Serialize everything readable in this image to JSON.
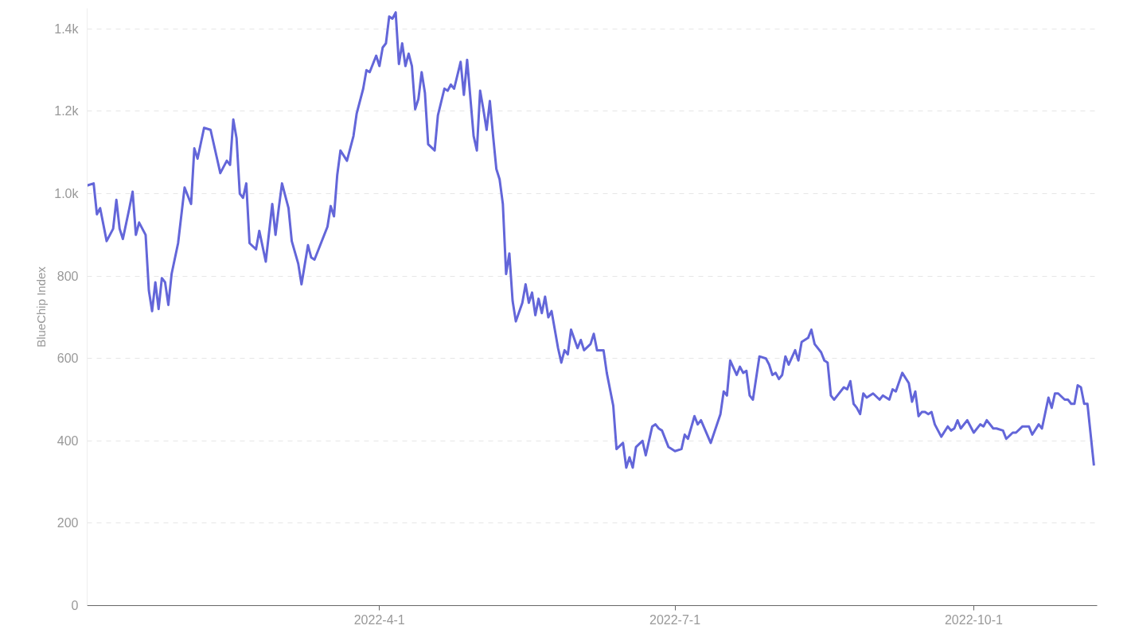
{
  "chart_data": {
    "type": "line",
    "ylabel": "BlueChip Index",
    "grid": "y",
    "xlim": [
      "2022-01-01",
      "2022-11-08"
    ],
    "xticks": [
      {
        "value": "2022-04-01",
        "label": "2022-4-1"
      },
      {
        "value": "2022-07-01",
        "label": "2022-7-1"
      },
      {
        "value": "2022-10-01",
        "label": "2022-10-1"
      }
    ],
    "ylim": [
      0,
      1450
    ],
    "yticks": [
      0,
      200,
      400,
      600,
      800,
      {
        "value": 1000,
        "label": "1.0k"
      },
      {
        "value": 1200,
        "label": "1.2k"
      },
      {
        "value": 1400,
        "label": "1.4k"
      }
    ],
    "x": [
      "2022-01-01",
      "2022-01-03",
      "2022-01-04",
      "2022-01-05",
      "2022-01-07",
      "2022-01-09",
      "2022-01-10",
      "2022-01-11",
      "2022-01-12",
      "2022-01-14",
      "2022-01-15",
      "2022-01-16",
      "2022-01-17",
      "2022-01-19",
      "2022-01-20",
      "2022-01-21",
      "2022-01-22",
      "2022-01-23",
      "2022-01-24",
      "2022-01-25",
      "2022-01-26",
      "2022-01-27",
      "2022-01-29",
      "2022-01-31",
      "2022-02-02",
      "2022-02-03",
      "2022-02-04",
      "2022-02-06",
      "2022-02-08",
      "2022-02-10",
      "2022-02-11",
      "2022-02-13",
      "2022-02-14",
      "2022-02-15",
      "2022-02-16",
      "2022-02-17",
      "2022-02-18",
      "2022-02-19",
      "2022-02-20",
      "2022-02-22",
      "2022-02-23",
      "2022-02-25",
      "2022-02-27",
      "2022-02-28",
      "2022-03-01",
      "2022-03-02",
      "2022-03-04",
      "2022-03-05",
      "2022-03-07",
      "2022-03-08",
      "2022-03-10",
      "2022-03-11",
      "2022-03-12",
      "2022-03-14",
      "2022-03-16",
      "2022-03-17",
      "2022-03-18",
      "2022-03-19",
      "2022-03-20",
      "2022-03-22",
      "2022-03-24",
      "2022-03-25",
      "2022-03-27",
      "2022-03-28",
      "2022-03-29",
      "2022-03-31",
      "2022-04-01",
      "2022-04-02",
      "2022-04-03",
      "2022-04-04",
      "2022-04-05",
      "2022-04-06",
      "2022-04-07",
      "2022-04-08",
      "2022-04-09",
      "2022-04-10",
      "2022-04-11",
      "2022-04-12",
      "2022-04-13",
      "2022-04-14",
      "2022-04-15",
      "2022-04-16",
      "2022-04-18",
      "2022-04-19",
      "2022-04-21",
      "2022-04-22",
      "2022-04-23",
      "2022-04-24",
      "2022-04-26",
      "2022-04-27",
      "2022-04-28",
      "2022-04-30",
      "2022-05-01",
      "2022-05-02",
      "2022-05-03",
      "2022-05-04",
      "2022-05-05",
      "2022-05-06",
      "2022-05-07",
      "2022-05-08",
      "2022-05-09",
      "2022-05-10",
      "2022-05-11",
      "2022-05-12",
      "2022-05-13",
      "2022-05-15",
      "2022-05-16",
      "2022-05-17",
      "2022-05-18",
      "2022-05-19",
      "2022-05-20",
      "2022-05-21",
      "2022-05-22",
      "2022-05-23",
      "2022-05-24",
      "2022-05-26",
      "2022-05-27",
      "2022-05-28",
      "2022-05-29",
      "2022-05-30",
      "2022-06-01",
      "2022-06-02",
      "2022-06-03",
      "2022-06-05",
      "2022-06-06",
      "2022-06-07",
      "2022-06-09",
      "2022-06-10",
      "2022-06-12",
      "2022-06-13",
      "2022-06-15",
      "2022-06-16",
      "2022-06-17",
      "2022-06-18",
      "2022-06-19",
      "2022-06-21",
      "2022-06-22",
      "2022-06-24",
      "2022-06-25",
      "2022-06-26",
      "2022-06-27",
      "2022-06-29",
      "2022-07-01",
      "2022-07-03",
      "2022-07-04",
      "2022-07-05",
      "2022-07-07",
      "2022-07-08",
      "2022-07-09",
      "2022-07-12",
      "2022-07-15",
      "2022-07-16",
      "2022-07-17",
      "2022-07-18",
      "2022-07-20",
      "2022-07-21",
      "2022-07-22",
      "2022-07-23",
      "2022-07-24",
      "2022-07-25",
      "2022-07-27",
      "2022-07-29",
      "2022-07-30",
      "2022-07-31",
      "2022-08-01",
      "2022-08-02",
      "2022-08-03",
      "2022-08-04",
      "2022-08-05",
      "2022-08-07",
      "2022-08-08",
      "2022-08-09",
      "2022-08-11",
      "2022-08-12",
      "2022-08-13",
      "2022-08-15",
      "2022-08-16",
      "2022-08-17",
      "2022-08-18",
      "2022-08-19",
      "2022-08-20",
      "2022-08-22",
      "2022-08-23",
      "2022-08-24",
      "2022-08-25",
      "2022-08-26",
      "2022-08-27",
      "2022-08-28",
      "2022-08-29",
      "2022-08-31",
      "2022-09-02",
      "2022-09-03",
      "2022-09-05",
      "2022-09-06",
      "2022-09-07",
      "2022-09-09",
      "2022-09-11",
      "2022-09-12",
      "2022-09-13",
      "2022-09-14",
      "2022-09-15",
      "2022-09-16",
      "2022-09-17",
      "2022-09-18",
      "2022-09-19",
      "2022-09-21",
      "2022-09-23",
      "2022-09-24",
      "2022-09-25",
      "2022-09-26",
      "2022-09-27",
      "2022-09-29",
      "2022-10-01",
      "2022-10-03",
      "2022-10-04",
      "2022-10-05",
      "2022-10-07",
      "2022-10-08",
      "2022-10-10",
      "2022-10-11",
      "2022-10-13",
      "2022-10-14",
      "2022-10-16",
      "2022-10-18",
      "2022-10-19",
      "2022-10-21",
      "2022-10-22",
      "2022-10-24",
      "2022-10-25",
      "2022-10-26",
      "2022-10-27",
      "2022-10-29",
      "2022-10-30",
      "2022-10-31",
      "2022-11-01",
      "2022-11-02",
      "2022-11-03",
      "2022-11-04",
      "2022-11-05",
      "2022-11-07"
    ],
    "series": [
      {
        "color": "#6366d9",
        "values": [
          1020,
          1025,
          950,
          965,
          885,
          915,
          985,
          915,
          890,
          965,
          1005,
          900,
          930,
          900,
          765,
          715,
          785,
          720,
          795,
          785,
          730,
          805,
          880,
          1015,
          975,
          1110,
          1085,
          1160,
          1155,
          1085,
          1050,
          1080,
          1070,
          1180,
          1135,
          1000,
          990,
          1025,
          880,
          865,
          910,
          835,
          975,
          900,
          965,
          1025,
          965,
          885,
          830,
          780,
          875,
          845,
          840,
          880,
          920,
          970,
          945,
          1045,
          1105,
          1080,
          1140,
          1195,
          1255,
          1300,
          1295,
          1335,
          1310,
          1355,
          1365,
          1430,
          1425,
          1440,
          1315,
          1365,
          1310,
          1340,
          1310,
          1205,
          1230,
          1295,
          1245,
          1120,
          1105,
          1190,
          1255,
          1250,
          1265,
          1255,
          1320,
          1240,
          1325,
          1140,
          1105,
          1250,
          1205,
          1155,
          1225,
          1140,
          1060,
          1035,
          975,
          805,
          855,
          740,
          690,
          735,
          780,
          735,
          760,
          705,
          745,
          710,
          750,
          700,
          715,
          625,
          590,
          620,
          610,
          670,
          625,
          645,
          620,
          635,
          660,
          620,
          620,
          565,
          485,
          380,
          395,
          335,
          360,
          335,
          385,
          400,
          365,
          435,
          440,
          430,
          425,
          385,
          375,
          380,
          415,
          405,
          460,
          440,
          450,
          395,
          465,
          520,
          510,
          595,
          560,
          580,
          565,
          570,
          510,
          500,
          605,
          600,
          585,
          560,
          565,
          550,
          560,
          605,
          585,
          620,
          595,
          640,
          650,
          670,
          635,
          615,
          595,
          590,
          510,
          500,
          510,
          530,
          525,
          545,
          490,
          480,
          465,
          515,
          505,
          515,
          500,
          510,
          500,
          525,
          520,
          565,
          540,
          495,
          520,
          460,
          470,
          470,
          465,
          470,
          440,
          410,
          435,
          425,
          430,
          450,
          430,
          450,
          420,
          440,
          435,
          450,
          430,
          430,
          425,
          405,
          420,
          420,
          435,
          435,
          415,
          440,
          430,
          505,
          480,
          515,
          515,
          500,
          500,
          490,
          490,
          535,
          530,
          490,
          490,
          340
        ]
      }
    ]
  }
}
